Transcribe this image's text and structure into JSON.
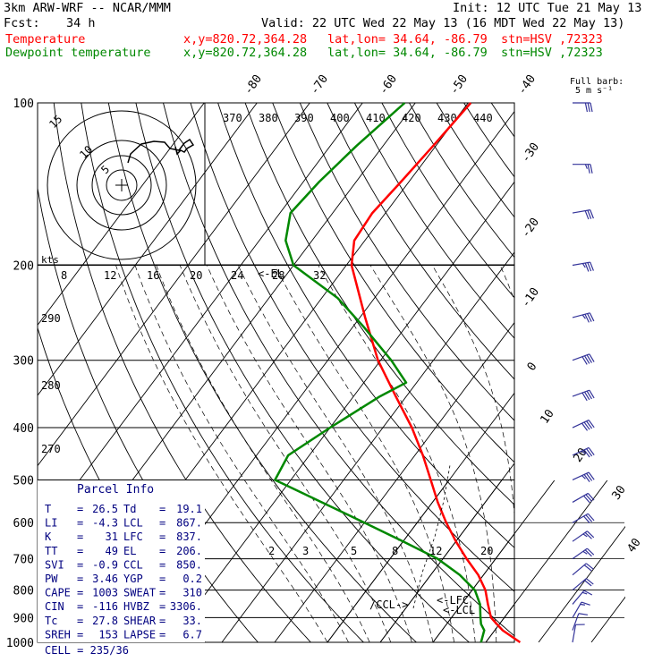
{
  "header": {
    "model": "3km ARW-WRF -- NCAR/MMM",
    "init": "Init: 12 UTC Tue 21 May 13",
    "fcst_label": "Fcst:",
    "fcst_value": "34 h",
    "valid": "Valid: 22 UTC Wed 22 May 13 (16 MDT Wed 22 May 13)",
    "lines": [
      {
        "name": "Temperature",
        "xy": "x,y=820.72,364.28",
        "latlon": "lat,lon= 34.64, -86.79",
        "stn": "stn=HSV ,72323",
        "color": "#ff0000"
      },
      {
        "name": "Dewpoint temperature",
        "xy": "x,y=820.72,364.28",
        "latlon": "lat,lon= 34.64, -86.79",
        "stn": "stn=HSV ,72323",
        "color": "#008800"
      }
    ]
  },
  "chart_data": {
    "type": "line",
    "title": "",
    "yaxis": "pressure (hPa), log scale",
    "pressure_ticks": [
      "100",
      "200",
      "300",
      "400",
      "500",
      "600",
      "700",
      "800",
      "900",
      "1000"
    ],
    "isotherm_labels": [
      "-80",
      "-70",
      "-60",
      "-50",
      "-40",
      "-30",
      "-20",
      "-10",
      "0",
      "10",
      "20",
      "30",
      "40"
    ],
    "series": [
      {
        "name": "Temperature",
        "color": "#ff0000",
        "p": [
          1000,
          950,
          925,
          900,
          850,
          800,
          750,
          700,
          650,
          600,
          550,
          500,
          450,
          400,
          350,
          300,
          250,
          200,
          180,
          160,
          140,
          120,
          100
        ],
        "t": [
          26.5,
          21.5,
          19.5,
          17.5,
          15.0,
          12.5,
          9.0,
          4.5,
          0.0,
          -4.5,
          -9.0,
          -13.5,
          -18.5,
          -24.5,
          -32.0,
          -40.5,
          -49.0,
          -59.0,
          -62.0,
          -62.5,
          -61.5,
          -60.5,
          -59.5
        ]
      },
      {
        "name": "Dewpoint temperature",
        "color": "#008800",
        "p": [
          1000,
          950,
          925,
          900,
          850,
          800,
          750,
          700,
          650,
          600,
          550,
          500,
          450,
          400,
          350,
          330,
          300,
          260,
          230,
          200,
          180,
          160,
          140,
          120,
          100
        ],
        "t": [
          19.1,
          18.0,
          16.5,
          15.5,
          13.5,
          10.5,
          5.5,
          -1.0,
          -10.0,
          -20.0,
          -31.0,
          -43.0,
          -44.0,
          -40.0,
          -35.0,
          -32.0,
          -38.0,
          -48.0,
          -57.0,
          -70.0,
          -75.0,
          -78.0,
          -77.0,
          -75.0,
          -72.0
        ]
      }
    ],
    "annotations": {
      "el": "<-EL",
      "lfc": "<-LFC",
      "lcl": "<-LCL",
      "ccl": "/CCL->",
      "barb_title": "Full barb:",
      "barb_speed": "5 m s⁻¹",
      "theta_labels": [
        "370",
        "380",
        "390",
        "400",
        "410",
        "420",
        "430",
        "440"
      ],
      "hodo_speeds": [
        "5",
        "10",
        "15"
      ],
      "hodo_unit": "kts",
      "hodo_ticks": [
        "8",
        "12",
        "16",
        "20",
        "24",
        "28",
        "32"
      ],
      "theta_side": [
        "290",
        "280",
        "270"
      ],
      "mix_ratio_labels": [
        "2",
        "3",
        "5",
        "8",
        "12",
        "20"
      ]
    },
    "wind_barbs_kt": [
      {
        "p": 100,
        "spd": 30,
        "dir": 270
      },
      {
        "p": 130,
        "spd": 25,
        "dir": 270
      },
      {
        "p": 160,
        "spd": 30,
        "dir": 260
      },
      {
        "p": 200,
        "spd": 35,
        "dir": 260
      },
      {
        "p": 250,
        "spd": 35,
        "dir": 255
      },
      {
        "p": 300,
        "spd": 40,
        "dir": 250
      },
      {
        "p": 350,
        "spd": 40,
        "dir": 250
      },
      {
        "p": 400,
        "spd": 40,
        "dir": 245
      },
      {
        "p": 450,
        "spd": 35,
        "dir": 245
      },
      {
        "p": 500,
        "spd": 35,
        "dir": 245
      },
      {
        "p": 550,
        "spd": 30,
        "dir": 240
      },
      {
        "p": 600,
        "spd": 30,
        "dir": 240
      },
      {
        "p": 650,
        "spd": 25,
        "dir": 235
      },
      {
        "p": 700,
        "spd": 25,
        "dir": 235
      },
      {
        "p": 750,
        "spd": 20,
        "dir": 230
      },
      {
        "p": 800,
        "spd": 20,
        "dir": 230
      },
      {
        "p": 850,
        "spd": 15,
        "dir": 220
      },
      {
        "p": 900,
        "spd": 15,
        "dir": 210
      },
      {
        "p": 950,
        "spd": 10,
        "dir": 200
      },
      {
        "p": 1000,
        "spd": 10,
        "dir": 190
      }
    ]
  },
  "parcel_info": {
    "title": "Parcel Info",
    "rows": [
      [
        "T",
        "26.5",
        "Td",
        "19.1"
      ],
      [
        "LI",
        "-4.3",
        "LCL",
        "867."
      ],
      [
        "K",
        "31",
        "LFC",
        "837."
      ],
      [
        "TT",
        "49",
        "EL",
        "206."
      ],
      [
        "SVI",
        "-0.9",
        "CCL",
        "850."
      ],
      [
        "PW",
        "3.46",
        "YGP",
        "0.2"
      ],
      [
        "CAPE",
        "1003",
        "SWEAT",
        "310"
      ],
      [
        "CIN",
        "-116",
        "HVBZ",
        "3306."
      ],
      [
        "Tc",
        "27.8",
        "SHEAR",
        "33."
      ],
      [
        "SREH",
        "153",
        "LAPSE",
        "6.7"
      ]
    ],
    "cell": "CELL = 235/36"
  }
}
